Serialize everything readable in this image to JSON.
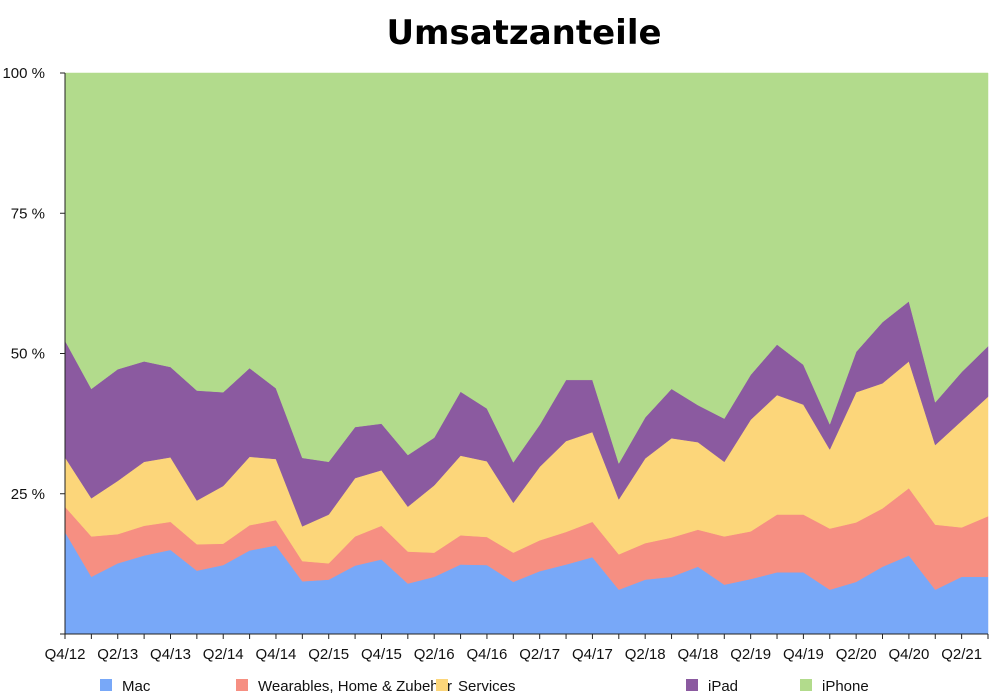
{
  "chart_data": {
    "type": "area",
    "stacked": true,
    "percent": true,
    "title": "Umsatzanteile",
    "xlabel": "",
    "ylabel": "",
    "ylim": [
      0,
      100
    ],
    "yticks": [
      0,
      25,
      50,
      75,
      100
    ],
    "ytick_labels": [
      "",
      "25 %",
      "50 %",
      "75 %",
      "100 %"
    ],
    "grid": false,
    "legend": "bottom",
    "x": [
      "Q4/12",
      "Q1/13",
      "Q2/13",
      "Q3/13",
      "Q4/13",
      "Q1/14",
      "Q2/14",
      "Q3/14",
      "Q4/14",
      "Q1/15",
      "Q2/15",
      "Q3/15",
      "Q4/15",
      "Q1/16",
      "Q2/16",
      "Q3/16",
      "Q4/16",
      "Q1/17",
      "Q2/17",
      "Q3/17",
      "Q4/17",
      "Q1/18",
      "Q2/18",
      "Q3/18",
      "Q4/18",
      "Q1/19",
      "Q2/19",
      "Q3/19",
      "Q4/19",
      "Q1/20",
      "Q2/20",
      "Q3/20",
      "Q4/20",
      "Q1/21",
      "Q2/21",
      "Q3/21"
    ],
    "xtick_labels": [
      "Q4/12",
      "Q2/13",
      "Q4/13",
      "Q2/14",
      "Q4/14",
      "Q2/15",
      "Q4/15",
      "Q2/16",
      "Q4/16",
      "Q2/17",
      "Q4/17",
      "Q2/18",
      "Q4/18",
      "Q2/19",
      "Q4/19",
      "Q2/20",
      "Q4/20",
      "Q2/21"
    ],
    "series": [
      {
        "name": "Mac",
        "color": "#78A8F8",
        "values": [
          18.2,
          10.2,
          12.6,
          14.0,
          15.0,
          11.3,
          12.3,
          14.9,
          15.8,
          9.4,
          9.7,
          12.2,
          13.3,
          9.0,
          10.2,
          12.4,
          12.3,
          9.3,
          11.2,
          12.4,
          13.7,
          7.9,
          9.7,
          10.2,
          12.0,
          8.8,
          9.8,
          11.0,
          11.0,
          7.9,
          9.3,
          12.0,
          14.0,
          7.9,
          10.2,
          10.2
        ]
      },
      {
        "name": "Wearables, Home & Zubehör",
        "color": "#F68F82",
        "values": [
          4.5,
          7.2,
          5.2,
          5.3,
          5.0,
          4.7,
          3.8,
          4.5,
          4.5,
          3.6,
          2.9,
          5.2,
          6.0,
          5.7,
          4.3,
          5.2,
          5.0,
          5.2,
          5.5,
          5.8,
          6.3,
          6.3,
          6.5,
          7.0,
          6.6,
          8.6,
          8.5,
          10.3,
          10.3,
          10.9,
          10.6,
          10.4,
          12.0,
          11.6,
          8.8,
          10.8
        ]
      },
      {
        "name": "Services",
        "color": "#FCD67A",
        "values": [
          8.8,
          6.8,
          9.5,
          11.4,
          11.5,
          7.8,
          10.3,
          12.2,
          10.9,
          6.2,
          8.7,
          10.4,
          9.9,
          8.0,
          12.0,
          14.2,
          13.5,
          8.9,
          13.1,
          16.2,
          16.0,
          9.8,
          15.1,
          17.7,
          15.6,
          13.3,
          19.9,
          21.3,
          19.6,
          14.1,
          23.2,
          22.3,
          22.6,
          14.2,
          19.0,
          21.3
        ]
      },
      {
        "name": "iPad",
        "color": "#8B5AA0",
        "values": [
          20.8,
          19.5,
          19.9,
          17.9,
          16.1,
          19.6,
          16.7,
          15.8,
          12.6,
          12.2,
          9.4,
          9.1,
          8.3,
          9.2,
          8.5,
          11.4,
          9.4,
          7.2,
          7.5,
          10.9,
          9.3,
          6.4,
          7.3,
          8.8,
          6.6,
          7.7,
          8.0,
          9.0,
          7.1,
          4.5,
          7.2,
          10.9,
          10.7,
          7.6,
          8.7,
          9.0
        ]
      },
      {
        "name": "iPhone",
        "color": "#B2DB8C",
        "values": [
          47.7,
          56.3,
          52.8,
          51.4,
          52.4,
          56.6,
          56.9,
          52.6,
          56.2,
          68.6,
          69.3,
          63.1,
          62.5,
          68.1,
          65.0,
          56.8,
          59.8,
          69.4,
          62.7,
          54.7,
          54.7,
          69.6,
          61.4,
          56.3,
          59.2,
          61.6,
          53.8,
          48.4,
          52.0,
          62.6,
          49.7,
          44.4,
          40.7,
          58.7,
          53.3,
          48.7
        ]
      }
    ]
  }
}
